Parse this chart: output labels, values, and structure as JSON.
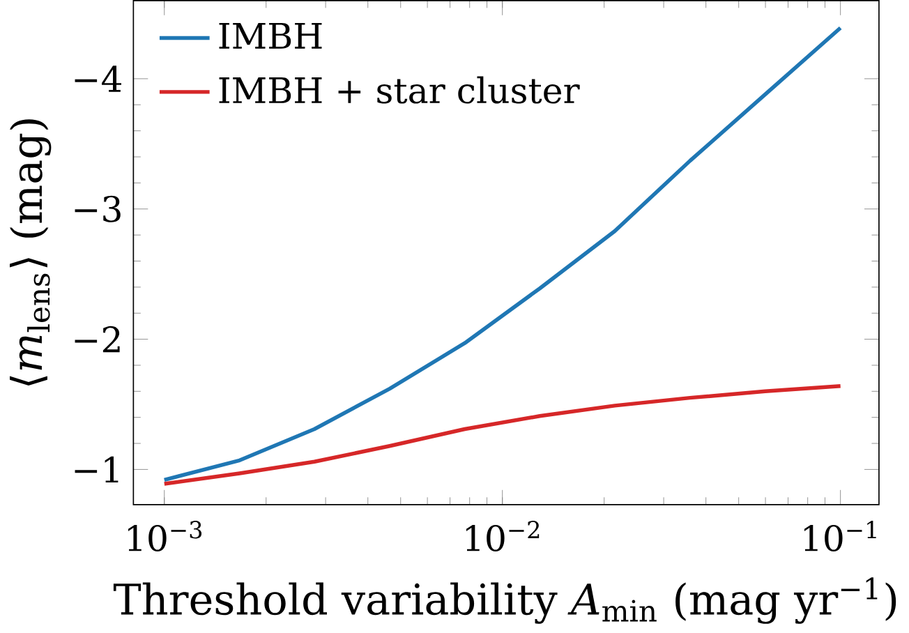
{
  "chart_data": {
    "type": "line",
    "xlabel": "Threshold variability *A*$_{min}$ (mag yr$^{−1}$)",
    "ylabel": "⟨*m*$_{lens}$⟩ (mag)",
    "log": "x",
    "legend": "top left",
    "line_style": "solid",
    "xlim": [
      0.00081,
      0.13
    ],
    "ylim": [
      -0.73,
      -4.6
    ],
    "xticks": [
      {
        "value": 0.001,
        "label": "10$^{−3}$"
      },
      {
        "value": 0.01,
        "label": "10$^{−2}$"
      },
      {
        "value": 0.1,
        "label": "10$^{−1}$"
      }
    ],
    "yticks": [
      {
        "value": -1,
        "label": "−1"
      },
      {
        "value": -2,
        "label": "−2"
      },
      {
        "value": -3,
        "label": "−3"
      },
      {
        "value": -4,
        "label": "−4"
      }
    ],
    "x": [
      0.001,
      0.00167,
      0.00278,
      0.00464,
      0.00774,
      0.0129,
      0.0215,
      0.0359,
      0.0599,
      0.1
    ],
    "series": [
      {
        "name": "IMBH",
        "color": "#1f77b4",
        "values": [
          -0.92,
          -1.07,
          -1.31,
          -1.62,
          -1.97,
          -2.39,
          -2.83,
          -3.37,
          -3.88,
          -4.39
        ]
      },
      {
        "name": "IMBH + star cluster",
        "color": "#d62728",
        "values": [
          -0.89,
          -0.97,
          -1.06,
          -1.18,
          -1.31,
          -1.41,
          -1.49,
          -1.55,
          -1.6,
          -1.64
        ]
      }
    ]
  }
}
